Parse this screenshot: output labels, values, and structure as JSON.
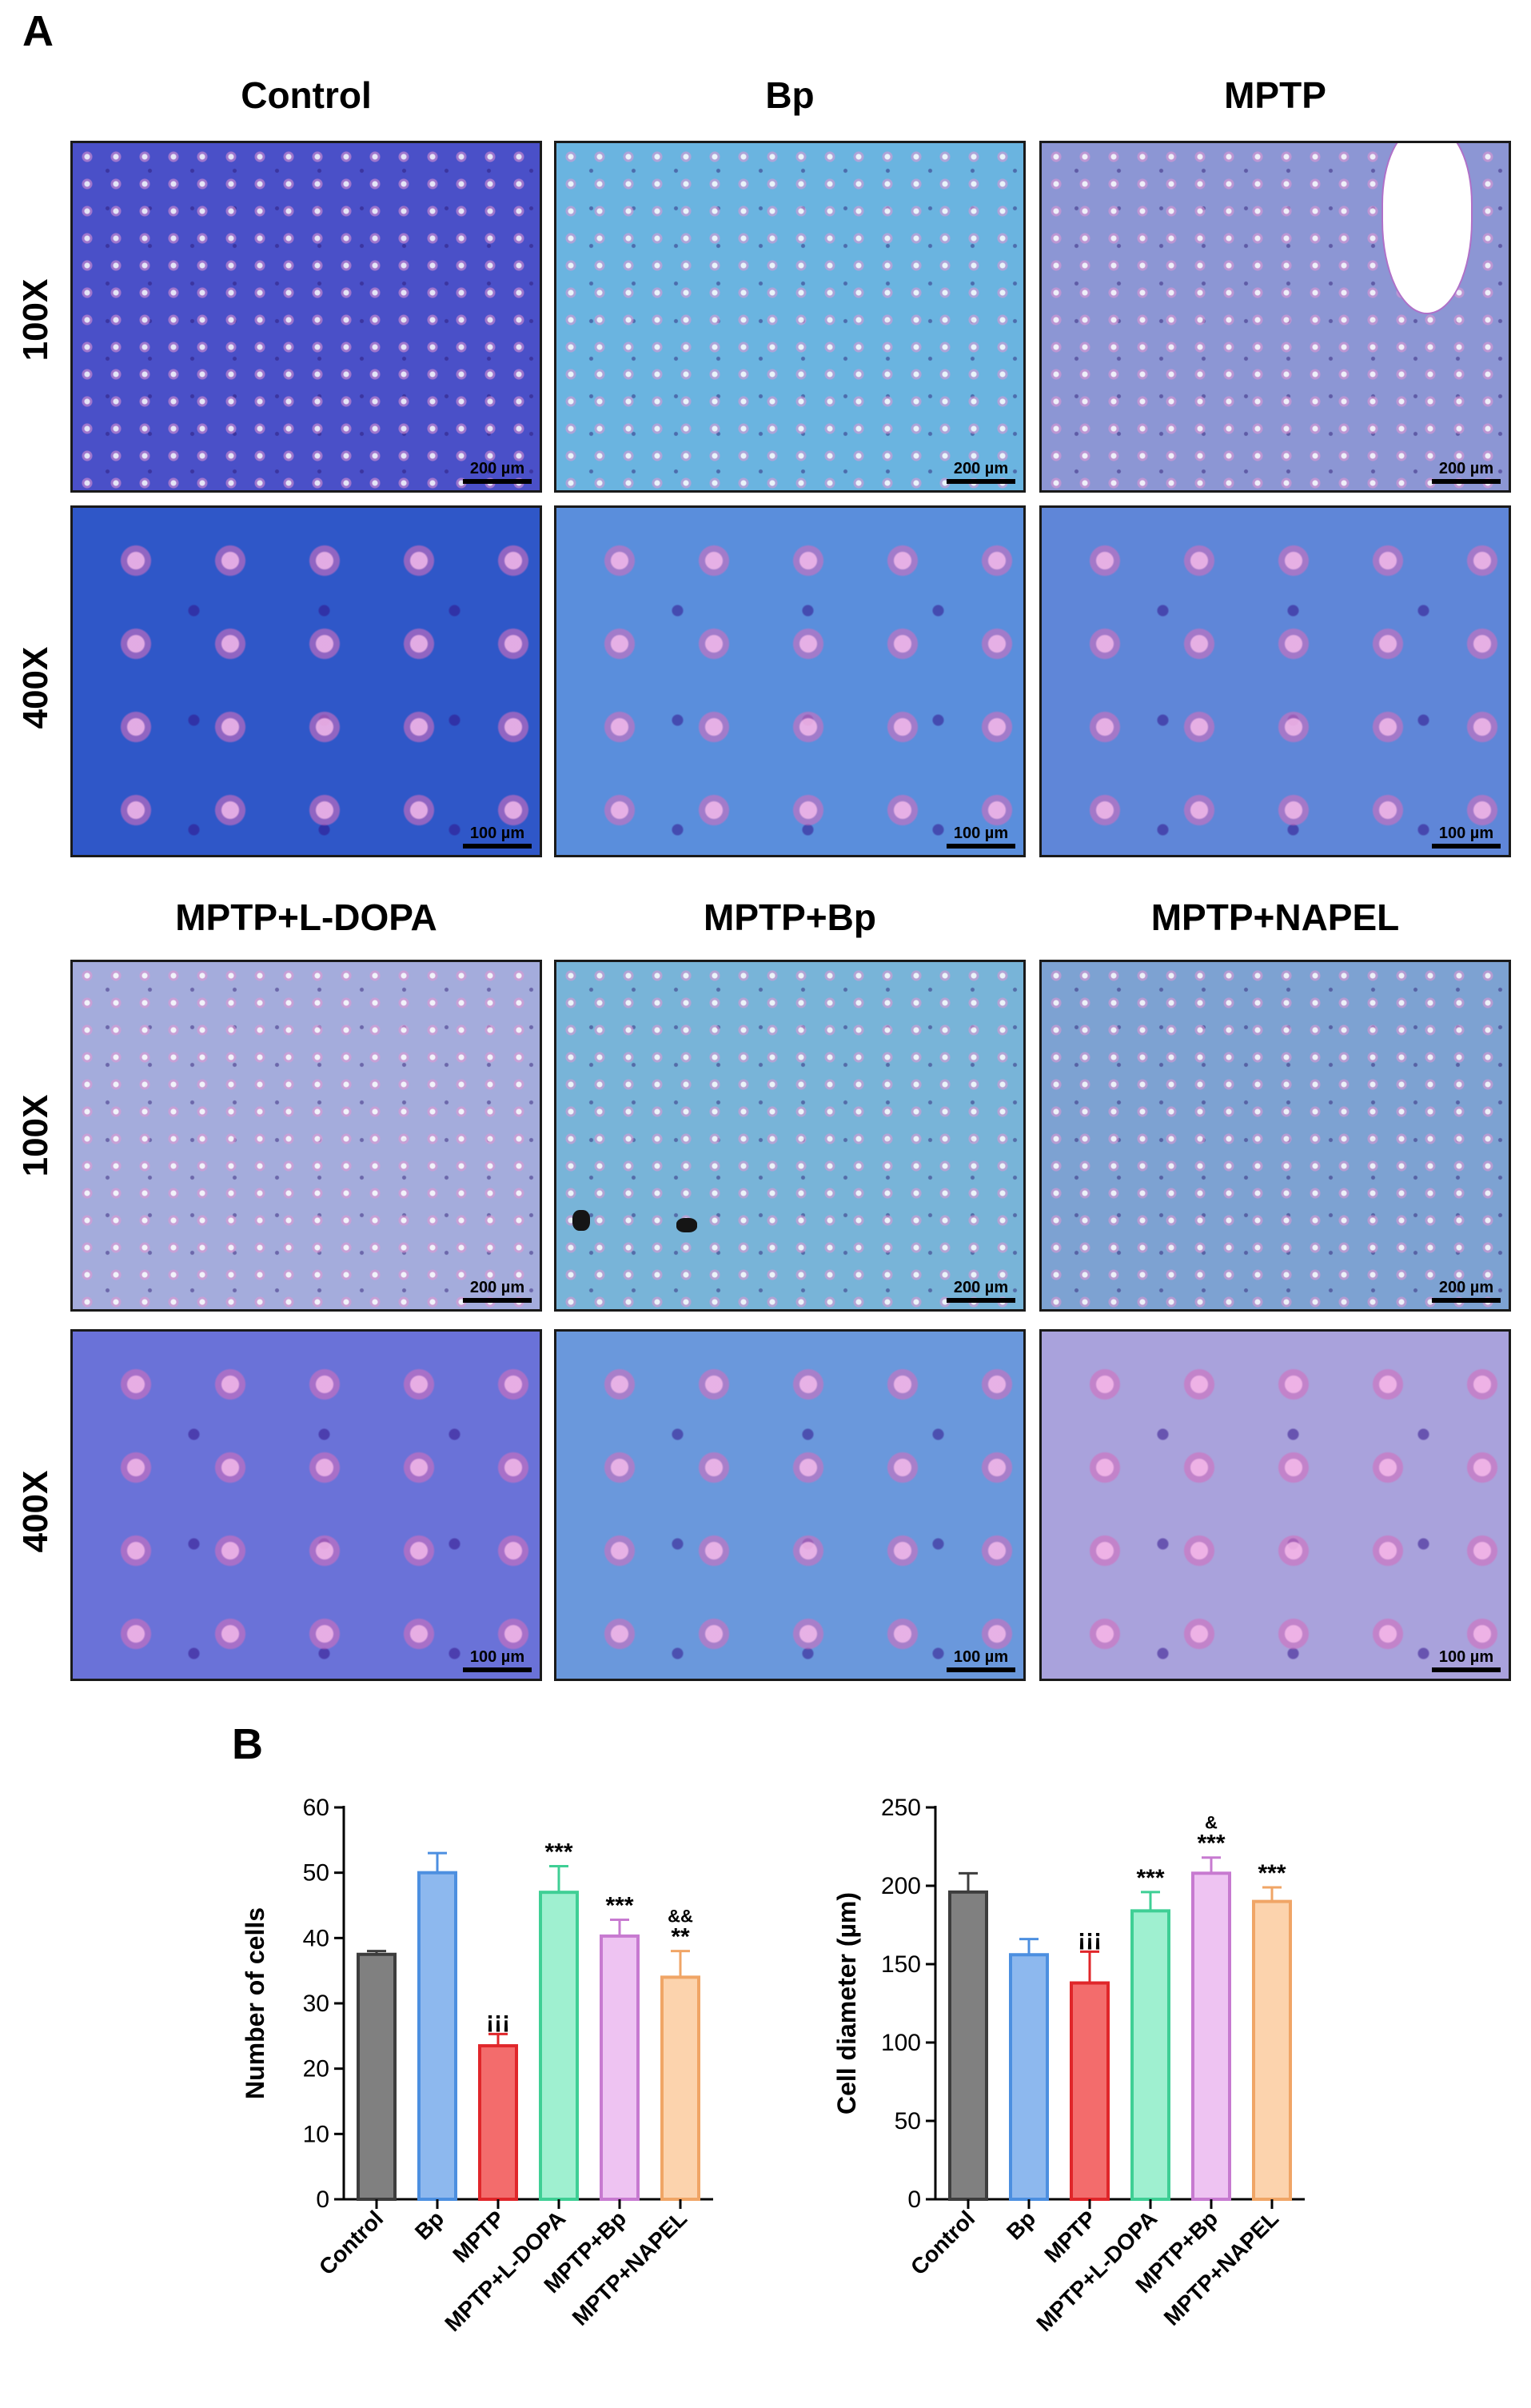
{
  "panel_a": {
    "letter": "A",
    "top_group": {
      "columns": [
        "Control",
        "Bp",
        "MPTP"
      ],
      "rows": [
        "100X",
        "400X"
      ]
    },
    "bottom_group": {
      "columns": [
        "MPTP+L-DOPA",
        "MPTP+Bp",
        "MPTP+NAPEL"
      ],
      "rows": [
        "100X",
        "400X"
      ]
    },
    "scale_low": "200 µm",
    "scale_high": "100 µm",
    "panel_colors": {
      "Control": "#4a50c8",
      "Bp": "#6ab4e0",
      "MPTP": "#8c96d4",
      "MPTP+L-DOPA": "#a4acdc",
      "MPTP+Bp": "#78b4d8",
      "MPTP+NAPEL": "#7da2d2"
    }
  },
  "panel_b": {
    "letter": "B"
  },
  "chart_data": [
    {
      "type": "bar",
      "categories": [
        "Control",
        "Bp",
        "MPTP",
        "MPTP+L-DOPA",
        "MPTP+Bp",
        "MPTP+NAPEL"
      ],
      "values": [
        37.5,
        50,
        23.5,
        47,
        40.3,
        34
      ],
      "errors": [
        0.5,
        3,
        1.8,
        4,
        2.5,
        4
      ],
      "annotations": [
        "",
        "",
        "¡¡¡",
        "***",
        "***",
        "&&\n**"
      ],
      "ylabel": "Number of cells",
      "xlabel": "",
      "ylim": [
        0,
        60
      ],
      "yticks": [
        0,
        10,
        20,
        30,
        40,
        50,
        60
      ],
      "colors": [
        "#808080",
        "#8db8ee",
        "#f36c6c",
        "#9ff0d0",
        "#eec3f2",
        "#fcd3ad"
      ],
      "edge_colors": [
        "#3d3d3d",
        "#4c8fe0",
        "#e0262a",
        "#3fcf95",
        "#c77ad0",
        "#f0a566"
      ]
    },
    {
      "type": "bar",
      "categories": [
        "Control",
        "Bp",
        "MPTP",
        "MPTP+L-DOPA",
        "MPTP+Bp",
        "MPTP+NAPEL"
      ],
      "values": [
        196,
        156,
        138,
        184,
        208,
        190
      ],
      "errors": [
        12,
        10,
        20,
        12,
        10,
        9
      ],
      "annotations": [
        "",
        "",
        "¡¡¡",
        "***",
        "&\n***",
        "***"
      ],
      "ylabel": "Cell diameter (µm)",
      "xlabel": "",
      "ylim": [
        0,
        250
      ],
      "yticks": [
        0,
        50,
        100,
        150,
        200,
        250
      ],
      "colors": [
        "#808080",
        "#8db8ee",
        "#f36c6c",
        "#9ff0d0",
        "#eec3f2",
        "#fcd3ad"
      ],
      "edge_colors": [
        "#3d3d3d",
        "#4c8fe0",
        "#e0262a",
        "#3fcf95",
        "#c77ad0",
        "#f0a566"
      ]
    }
  ]
}
